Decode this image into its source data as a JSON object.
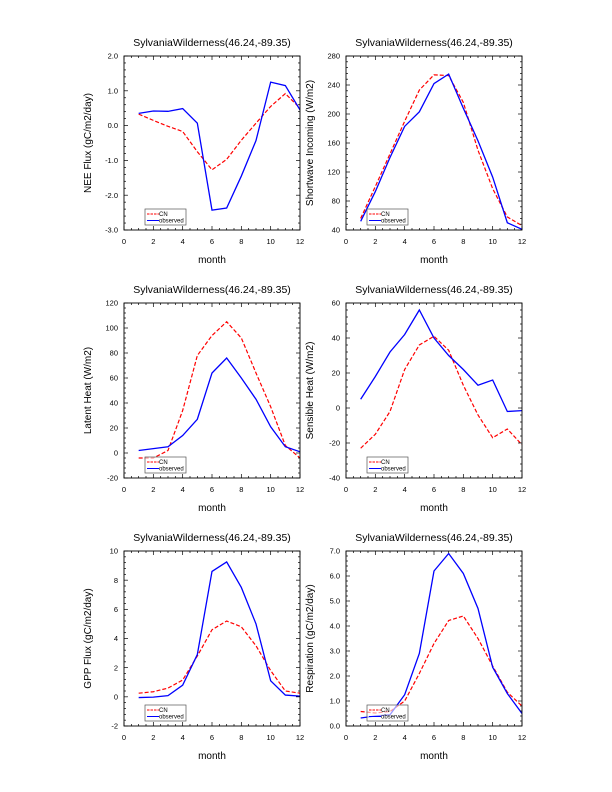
{
  "chart_data": [
    {
      "type": "line",
      "title": "SylvaniaWilderness(46.24,-89.35)",
      "xlabel": "month",
      "ylabel": "NEE Flux (gC/m2/day)",
      "xlim": [
        0,
        12
      ],
      "ylim": [
        -3.0,
        2.0
      ],
      "xticks": [
        0,
        2,
        4,
        6,
        8,
        10,
        12
      ],
      "yticks": [
        -3.0,
        -2.0,
        -1.0,
        0.0,
        1.0,
        2.0
      ],
      "ytick_labels": [
        "-3.0",
        "-2.0",
        "-1.0",
        "0.0",
        "1.0",
        "2.0"
      ],
      "legend_position": "bottom-left",
      "x": [
        1,
        2,
        3,
        4,
        5,
        6,
        7,
        8,
        9,
        10,
        11,
        12
      ],
      "series": [
        {
          "name": "CN",
          "color": "#ff0000",
          "dash": true,
          "values": [
            0.33,
            0.15,
            -0.02,
            -0.17,
            -0.75,
            -1.27,
            -0.97,
            -0.42,
            0.07,
            0.55,
            0.92,
            0.5
          ]
        },
        {
          "name": "observed",
          "color": "#0000ff",
          "dash": false,
          "values": [
            0.35,
            0.42,
            0.41,
            0.49,
            0.07,
            -2.43,
            -2.37,
            -1.45,
            -0.43,
            1.25,
            1.15,
            0.45
          ]
        }
      ]
    },
    {
      "type": "line",
      "title": "SylvaniaWilderness(46.24,-89.35)",
      "xlabel": "month",
      "ylabel": "Shortwave Incoming (W/m2)",
      "xlim": [
        0,
        12
      ],
      "ylim": [
        40,
        280
      ],
      "xticks": [
        0,
        2,
        4,
        6,
        8,
        10,
        12
      ],
      "yticks": [
        40,
        80,
        120,
        160,
        200,
        240,
        280
      ],
      "ytick_labels": [
        "40",
        "80",
        "120",
        "160",
        "200",
        "240",
        "280"
      ],
      "legend_position": "bottom-left",
      "x": [
        1,
        2,
        3,
        4,
        5,
        6,
        7,
        8,
        9,
        10,
        11,
        12
      ],
      "series": [
        {
          "name": "CN",
          "color": "#ff0000",
          "dash": true,
          "values": [
            56,
            100,
            145,
            190,
            233,
            254,
            253,
            216,
            150,
            97,
            58,
            46
          ]
        },
        {
          "name": "observed",
          "color": "#0000ff",
          "dash": false,
          "values": [
            52,
            93,
            140,
            183,
            203,
            242,
            255,
            208,
            163,
            113,
            50,
            41
          ]
        }
      ]
    },
    {
      "type": "line",
      "title": "SylvaniaWilderness(46.24,-89.35)",
      "xlabel": "month",
      "ylabel": "Latent Heat (W/m2)",
      "xlim": [
        0,
        12
      ],
      "ylim": [
        -20,
        120
      ],
      "xticks": [
        0,
        2,
        4,
        6,
        8,
        10,
        12
      ],
      "yticks": [
        -20,
        0,
        20,
        40,
        60,
        80,
        100,
        120
      ],
      "ytick_labels": [
        "-20",
        "0",
        "20",
        "40",
        "60",
        "80",
        "100",
        "120"
      ],
      "legend_position": "bottom-left",
      "x": [
        1,
        2,
        3,
        4,
        5,
        6,
        7,
        8,
        9,
        10,
        11,
        12
      ],
      "series": [
        {
          "name": "CN",
          "color": "#ff0000",
          "dash": true,
          "values": [
            -4,
            -4,
            2,
            34,
            78,
            94,
            105,
            92,
            64,
            37,
            6,
            -4
          ]
        },
        {
          "name": "observed",
          "color": "#0000ff",
          "dash": false,
          "values": [
            2,
            3.5,
            5,
            14,
            27,
            64,
            76,
            60,
            43,
            21,
            5,
            1
          ]
        }
      ]
    },
    {
      "type": "line",
      "title": "SylvaniaWilderness(46.24,-89.35)",
      "xlabel": "month",
      "ylabel": "Sensible Heat (W/m2)",
      "xlim": [
        0,
        12
      ],
      "ylim": [
        -40,
        60
      ],
      "xticks": [
        0,
        2,
        4,
        6,
        8,
        10,
        12
      ],
      "yticks": [
        -40,
        -20,
        0,
        20,
        40,
        60
      ],
      "ytick_labels": [
        "-40",
        "-20",
        "0",
        "20",
        "40",
        "60"
      ],
      "legend_position": "bottom-left",
      "x": [
        1,
        2,
        3,
        4,
        5,
        6,
        7,
        8,
        9,
        10,
        11,
        12
      ],
      "series": [
        {
          "name": "CN",
          "color": "#ff0000",
          "dash": true,
          "values": [
            -23,
            -15,
            -2,
            22,
            36,
            41,
            33,
            13,
            -4,
            -17,
            -12,
            -21
          ]
        },
        {
          "name": "observed",
          "color": "#0000ff",
          "dash": false,
          "values": [
            5,
            18,
            32,
            42,
            56,
            40,
            30,
            22,
            13,
            16,
            -2,
            -1.5
          ]
        }
      ]
    },
    {
      "type": "line",
      "title": "SylvaniaWilderness(46.24,-89.35)",
      "xlabel": "month",
      "ylabel": "GPP Flux (gC/m2/day)",
      "xlim": [
        0,
        12
      ],
      "ylim": [
        -2,
        10
      ],
      "xticks": [
        0,
        2,
        4,
        6,
        8,
        10,
        12
      ],
      "yticks": [
        -2,
        0,
        2,
        4,
        6,
        8,
        10
      ],
      "ytick_labels": [
        "-2",
        "0",
        "2",
        "4",
        "6",
        "8",
        "10"
      ],
      "legend_position": "bottom-left",
      "x": [
        1,
        2,
        3,
        4,
        5,
        6,
        7,
        8,
        9,
        10,
        11,
        12
      ],
      "series": [
        {
          "name": "CN",
          "color": "#ff0000",
          "dash": true,
          "values": [
            0.25,
            0.35,
            0.6,
            1.15,
            2.8,
            4.6,
            5.2,
            4.8,
            3.5,
            1.8,
            0.4,
            0.25
          ]
        },
        {
          "name": "observed",
          "color": "#0000ff",
          "dash": false,
          "values": [
            -0.05,
            -0.02,
            0.08,
            0.8,
            2.9,
            8.6,
            9.25,
            7.5,
            5.0,
            1.1,
            0.12,
            0.05
          ]
        }
      ]
    },
    {
      "type": "line",
      "title": "SylvaniaWilderness(46.24,-89.35)",
      "xlabel": "month",
      "ylabel": "Respiration (gC/m2/day)",
      "xlim": [
        0,
        12
      ],
      "ylim": [
        0.0,
        7.0
      ],
      "xticks": [
        0,
        2,
        4,
        6,
        8,
        10,
        12
      ],
      "yticks": [
        0.0,
        1.0,
        2.0,
        3.0,
        4.0,
        5.0,
        6.0,
        7.0
      ],
      "ytick_labels": [
        "0.0",
        "1.0",
        "2.0",
        "3.0",
        "4.0",
        "5.0",
        "6.0",
        "7.0"
      ],
      "legend_position": "bottom-left",
      "x": [
        1,
        2,
        3,
        4,
        5,
        6,
        7,
        8,
        9,
        10,
        11,
        12
      ],
      "series": [
        {
          "name": "CN",
          "color": "#ff0000",
          "dash": true,
          "values": [
            0.58,
            0.52,
            0.58,
            1.0,
            2.1,
            3.3,
            4.22,
            4.4,
            3.5,
            2.4,
            1.35,
            0.8
          ]
        },
        {
          "name": "observed",
          "color": "#0000ff",
          "dash": false,
          "values": [
            0.32,
            0.4,
            0.45,
            1.25,
            2.9,
            6.2,
            6.9,
            6.1,
            4.7,
            2.35,
            1.3,
            0.5
          ]
        }
      ]
    }
  ]
}
